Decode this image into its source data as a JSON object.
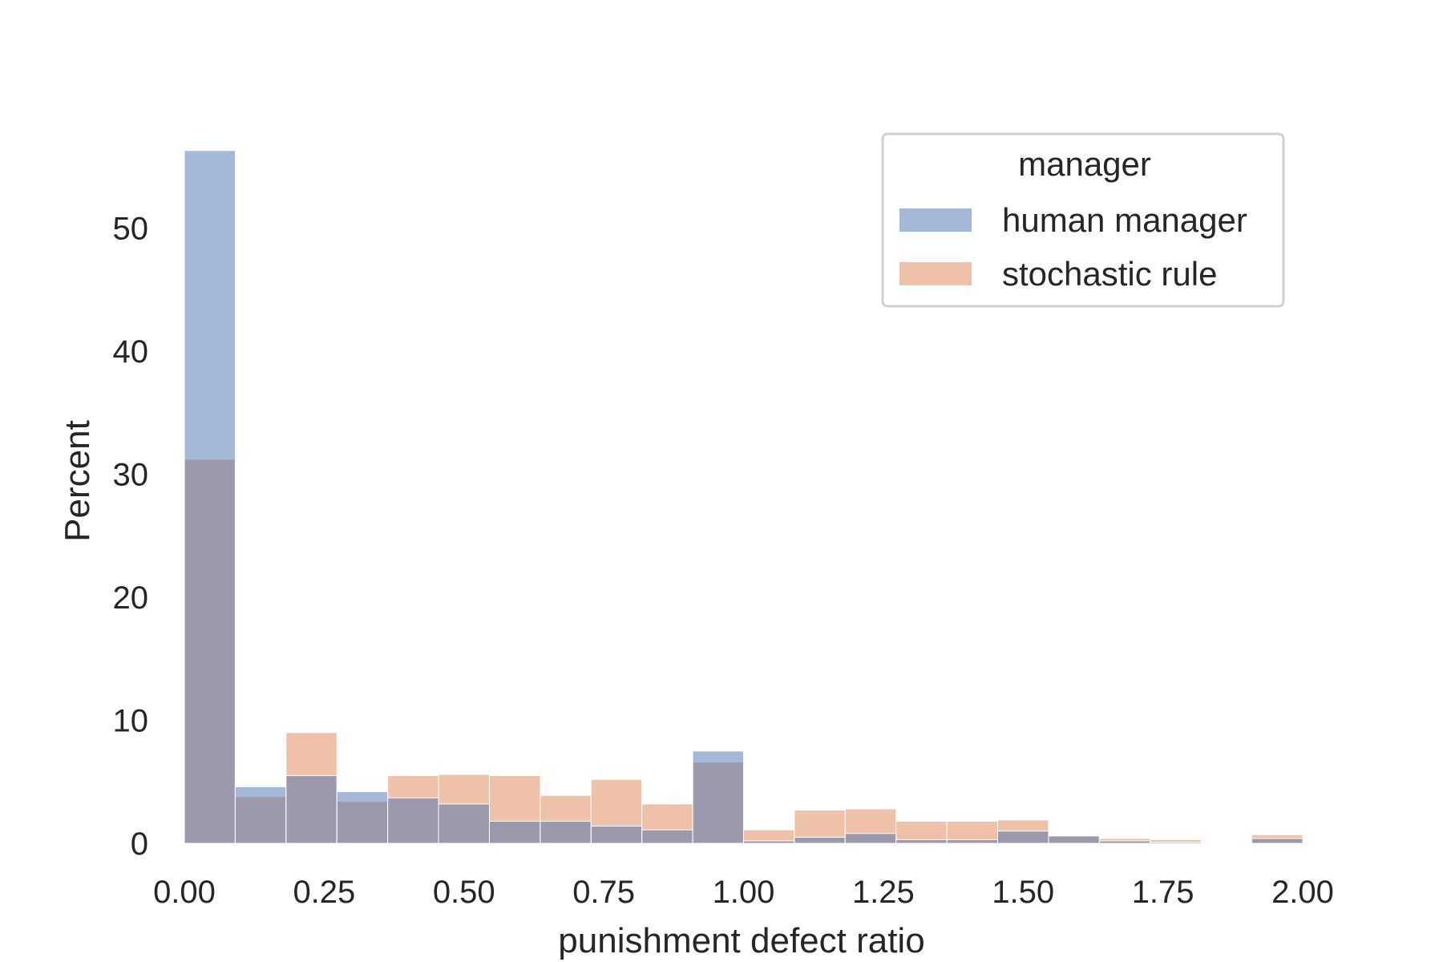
{
  "chart_data": {
    "type": "bar",
    "subtype": "overlapping-histogram",
    "title": "",
    "xlabel": "punishment defect ratio",
    "ylabel": "Percent",
    "xlim": [
      0,
      2.0
    ],
    "ylim": [
      0,
      60
    ],
    "xticks": [
      "0.00",
      "0.25",
      "0.50",
      "0.75",
      "1.00",
      "1.25",
      "1.50",
      "1.75",
      "2.00"
    ],
    "yticks": [
      "0",
      "10",
      "20",
      "30",
      "40",
      "50"
    ],
    "grid": false,
    "legend_position": "top-right",
    "legend_title": "manager",
    "bin_edges": [
      0.0,
      0.0909,
      0.1818,
      0.2727,
      0.3636,
      0.4545,
      0.5455,
      0.6364,
      0.7273,
      0.8182,
      0.9091,
      1.0,
      1.0909,
      1.1818,
      1.2727,
      1.3636,
      1.4545,
      1.5455,
      1.6364,
      1.7273,
      1.8182,
      1.9091,
      2.0
    ],
    "series": [
      {
        "name": "human manager",
        "color": "#4c72b0",
        "values": [
          56.3,
          4.6,
          5.5,
          4.2,
          3.7,
          3.2,
          1.8,
          1.8,
          1.4,
          1.1,
          7.5,
          0.2,
          0.5,
          0.8,
          0.3,
          0.3,
          1.0,
          0.6,
          0.2,
          0.1,
          0.0,
          0.4
        ]
      },
      {
        "name": "stochastic rule",
        "color": "#dd8452",
        "values": [
          31.2,
          3.8,
          9.0,
          3.4,
          5.5,
          5.6,
          5.5,
          3.9,
          5.2,
          3.2,
          6.6,
          1.1,
          2.7,
          2.8,
          1.8,
          1.8,
          1.9,
          0.6,
          0.4,
          0.3,
          0.0,
          0.7
        ]
      }
    ]
  }
}
